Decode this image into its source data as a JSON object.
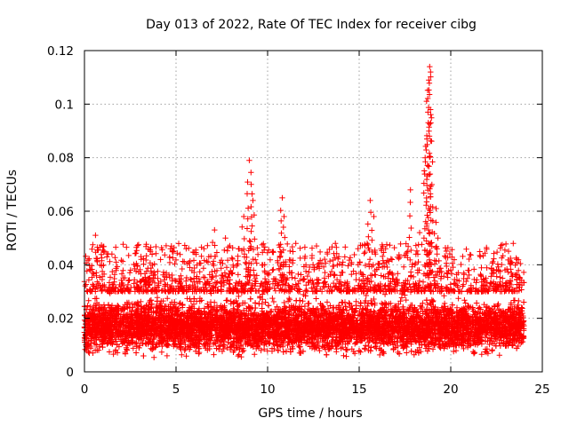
{
  "chart_data": {
    "type": "scatter",
    "title": "Day 013 of 2022, Rate Of TEC Index for receiver cibg",
    "xlabel": "GPS time / hours",
    "ylabel": "ROTI / TECUs",
    "xlim": [
      0,
      25
    ],
    "ylim": [
      0,
      0.12
    ],
    "x_ticks": [
      0,
      5,
      10,
      15,
      20,
      25
    ],
    "y_ticks": [
      0,
      0.02,
      0.04,
      0.06,
      0.08,
      0.1,
      0.12
    ],
    "grid": true,
    "marker": "+",
    "color": "#ff0000",
    "series": [
      {
        "name": "ROTI",
        "band": {
          "x_range": [
            0.0,
            24.0
          ],
          "y_typical_range": [
            0.008,
            0.03
          ],
          "y_core": 0.017,
          "description": "dense continuous band of ROTI samples across the day"
        },
        "peaks": [
          {
            "x": 0.6,
            "y": 0.051
          },
          {
            "x": 1.5,
            "y": 0.044
          },
          {
            "x": 3.6,
            "y": 0.045
          },
          {
            "x": 4.7,
            "y": 0.046
          },
          {
            "x": 7.1,
            "y": 0.053
          },
          {
            "x": 7.7,
            "y": 0.05
          },
          {
            "x": 8.7,
            "y": 0.058
          },
          {
            "x": 9.0,
            "y": 0.079
          },
          {
            "x": 9.1,
            "y": 0.07
          },
          {
            "x": 9.2,
            "y": 0.064
          },
          {
            "x": 10.8,
            "y": 0.065
          },
          {
            "x": 10.9,
            "y": 0.058
          },
          {
            "x": 13.7,
            "y": 0.048
          },
          {
            "x": 15.6,
            "y": 0.064
          },
          {
            "x": 15.8,
            "y": 0.058
          },
          {
            "x": 16.2,
            "y": 0.046
          },
          {
            "x": 17.8,
            "y": 0.068
          },
          {
            "x": 18.3,
            "y": 0.052
          },
          {
            "x": 18.6,
            "y": 0.08
          },
          {
            "x": 18.7,
            "y": 0.087
          },
          {
            "x": 18.75,
            "y": 0.097
          },
          {
            "x": 18.8,
            "y": 0.109
          },
          {
            "x": 18.85,
            "y": 0.114
          },
          {
            "x": 18.9,
            "y": 0.112
          },
          {
            "x": 19.2,
            "y": 0.061
          },
          {
            "x": 19.3,
            "y": 0.05
          },
          {
            "x": 23.6,
            "y": 0.042
          }
        ]
      }
    ]
  }
}
